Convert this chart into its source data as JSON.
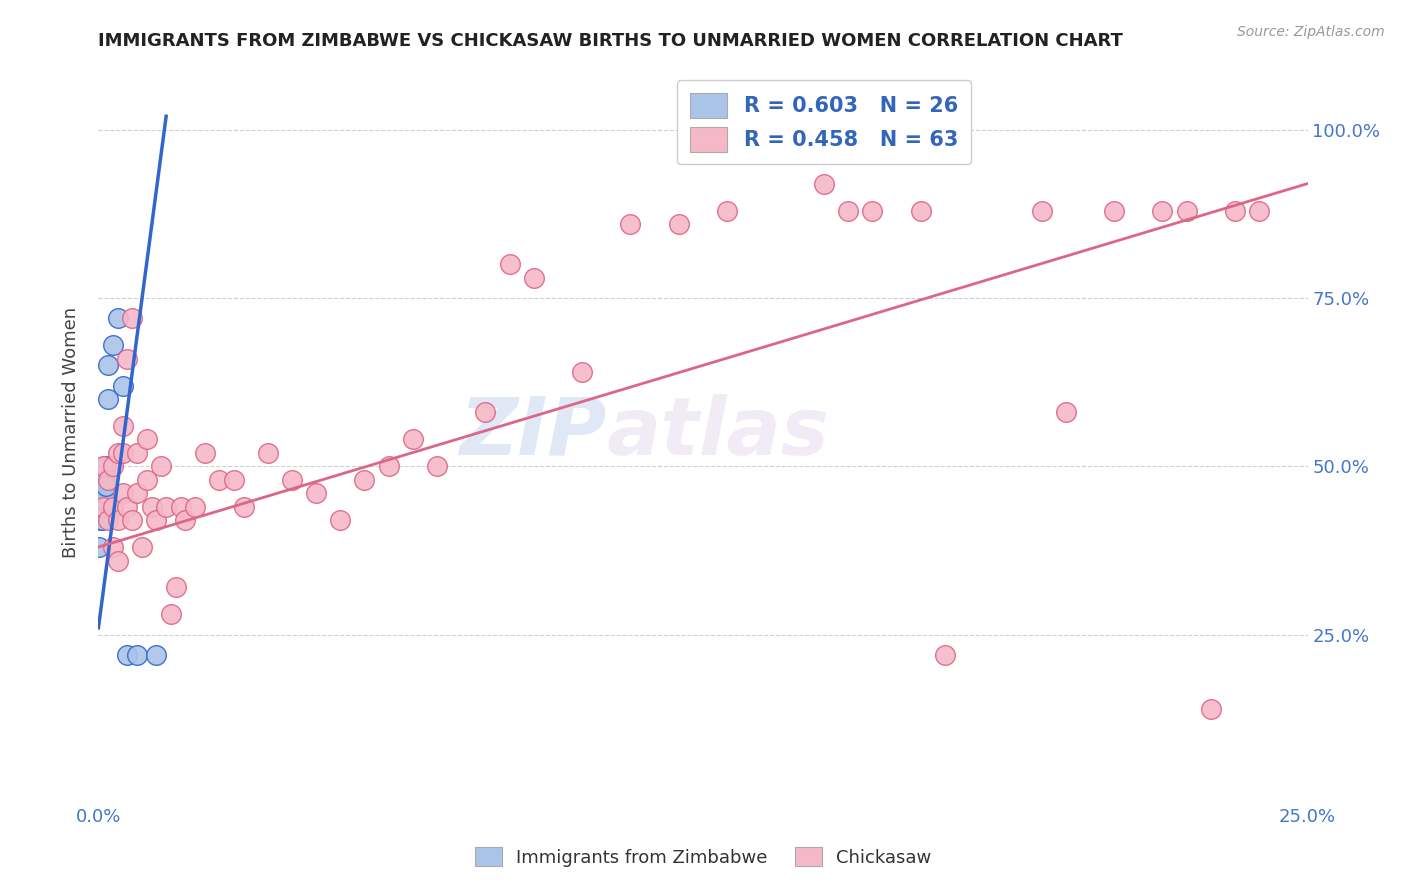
{
  "title": "IMMIGRANTS FROM ZIMBABWE VS CHICKASAW BIRTHS TO UNMARRIED WOMEN CORRELATION CHART",
  "source": "Source: ZipAtlas.com",
  "ylabel": "Births to Unmarried Women",
  "legend_r1": "R = 0.603",
  "legend_n1": "N = 26",
  "legend_r2": "R = 0.458",
  "legend_n2": "N = 63",
  "color_blue": "#aac4e8",
  "color_pink": "#f5b8c8",
  "line_blue": "#3366cc",
  "line_pink": "#dd6688",
  "watermark_zip": "ZIP",
  "watermark_atlas": "atlas",
  "xlim": [
    0.0,
    0.25
  ],
  "ylim": [
    0.0,
    1.1
  ],
  "blue_x": [
    0.0002,
    0.0003,
    0.0004,
    0.0005,
    0.0006,
    0.0006,
    0.0007,
    0.0008,
    0.0008,
    0.0009,
    0.001,
    0.001,
    0.0012,
    0.0012,
    0.0013,
    0.0014,
    0.0015,
    0.0016,
    0.002,
    0.002,
    0.003,
    0.004,
    0.005,
    0.006,
    0.008,
    0.012
  ],
  "blue_y": [
    0.38,
    0.44,
    0.46,
    0.44,
    0.42,
    0.46,
    0.42,
    0.44,
    0.46,
    0.45,
    0.44,
    0.48,
    0.45,
    0.47,
    0.46,
    0.48,
    0.5,
    0.47,
    0.6,
    0.65,
    0.68,
    0.72,
    0.62,
    0.22,
    0.22,
    0.22
  ],
  "blue_line_x": [
    0.0,
    0.014
  ],
  "blue_line_y": [
    0.26,
    1.02
  ],
  "pink_x": [
    0.001,
    0.001,
    0.002,
    0.002,
    0.003,
    0.003,
    0.003,
    0.004,
    0.004,
    0.004,
    0.005,
    0.005,
    0.005,
    0.006,
    0.006,
    0.007,
    0.007,
    0.008,
    0.008,
    0.009,
    0.01,
    0.01,
    0.011,
    0.012,
    0.013,
    0.014,
    0.015,
    0.016,
    0.017,
    0.018,
    0.02,
    0.022,
    0.025,
    0.028,
    0.03,
    0.035,
    0.04,
    0.045,
    0.05,
    0.055,
    0.06,
    0.065,
    0.07,
    0.08,
    0.085,
    0.09,
    0.1,
    0.11,
    0.12,
    0.13,
    0.15,
    0.155,
    0.16,
    0.17,
    0.175,
    0.195,
    0.2,
    0.21,
    0.22,
    0.225,
    0.23,
    0.235,
    0.24
  ],
  "pink_y": [
    0.44,
    0.5,
    0.42,
    0.48,
    0.38,
    0.44,
    0.5,
    0.36,
    0.42,
    0.52,
    0.46,
    0.52,
    0.56,
    0.44,
    0.66,
    0.42,
    0.72,
    0.46,
    0.52,
    0.38,
    0.48,
    0.54,
    0.44,
    0.42,
    0.5,
    0.44,
    0.28,
    0.32,
    0.44,
    0.42,
    0.44,
    0.52,
    0.48,
    0.48,
    0.44,
    0.52,
    0.48,
    0.46,
    0.42,
    0.48,
    0.5,
    0.54,
    0.5,
    0.58,
    0.8,
    0.78,
    0.64,
    0.86,
    0.86,
    0.88,
    0.92,
    0.88,
    0.88,
    0.88,
    0.22,
    0.88,
    0.58,
    0.88,
    0.88,
    0.88,
    0.14,
    0.88,
    0.88
  ],
  "pink_line_x": [
    0.0,
    0.25
  ],
  "pink_line_y": [
    0.38,
    0.92
  ]
}
